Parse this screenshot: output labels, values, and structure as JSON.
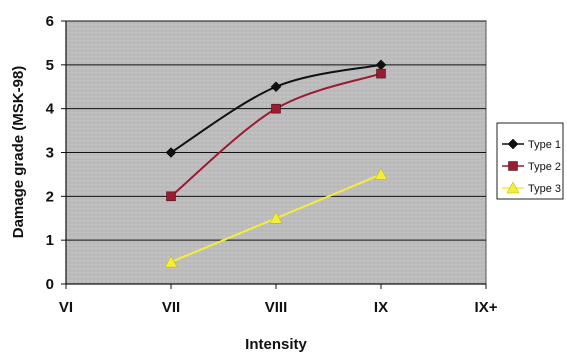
{
  "chart_data": {
    "type": "line",
    "title": "",
    "xlabel": "Intensity",
    "ylabel": "Damage grade (MSK-98)",
    "categories": [
      "VI",
      "VII",
      "VIII",
      "IX",
      "IX+"
    ],
    "ylim": [
      0,
      6
    ],
    "yticks": [
      0,
      1,
      2,
      3,
      4,
      5,
      6
    ],
    "grid": "horizontal",
    "legend_position": "right",
    "plot_background": "#bcbcbc",
    "series": [
      {
        "name": "Type 1",
        "color": "#111111",
        "marker": "diamond",
        "values": [
          null,
          3.0,
          4.5,
          5.0,
          null
        ]
      },
      {
        "name": "Type 2",
        "color": "#9b1b30",
        "marker": "square",
        "values": [
          null,
          2.0,
          4.0,
          4.8,
          null
        ]
      },
      {
        "name": "Type 3",
        "color": "#f2ee3a",
        "marker": "triangle",
        "values": [
          null,
          0.5,
          1.5,
          2.5,
          null
        ]
      }
    ]
  }
}
